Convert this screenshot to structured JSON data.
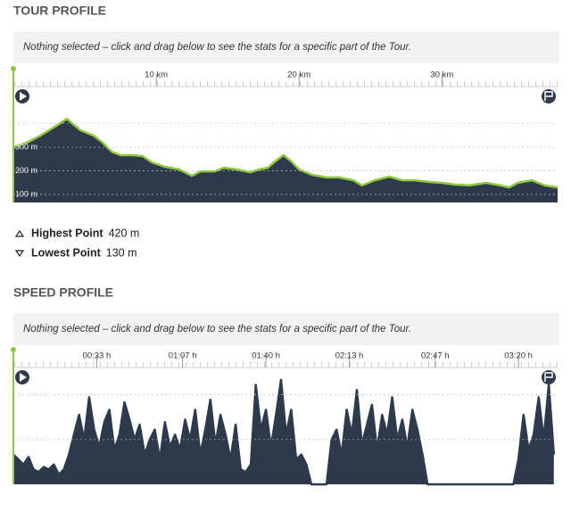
{
  "chart_data": [
    {
      "type": "area",
      "title": "TOUR PROFILE",
      "note": "Nothing selected – click and drag below to see the stats for a specific part of the Tour.",
      "x": [
        0,
        0.94,
        1.88,
        2.81,
        3.75,
        4.69,
        5.63,
        6.25,
        6.88,
        7.5,
        8.44,
        9.06,
        9.69,
        10.6,
        11.6,
        12.5,
        13.1,
        14.1,
        14.7,
        15.6,
        16.6,
        17.2,
        17.8,
        18.4,
        18.9,
        19.4,
        20,
        20.9,
        21.9,
        22.8,
        23.8,
        24.4,
        25.3,
        26.3,
        27.2,
        28.1,
        29.1,
        30,
        30.9,
        31.9,
        33.1,
        34.1,
        34.7,
        35.3,
        36.3,
        37.2,
        38.1
      ],
      "values": [
        300,
        319,
        349,
        383,
        420,
        372,
        349,
        319,
        281,
        266,
        266,
        262,
        236,
        217,
        206,
        179,
        198,
        198,
        213,
        206,
        194,
        206,
        213,
        243,
        266,
        243,
        206,
        183,
        172,
        172,
        160,
        138,
        160,
        175,
        160,
        160,
        153,
        149,
        142,
        138,
        149,
        138,
        130,
        149,
        160,
        138,
        130
      ],
      "xlim": [
        0,
        38.1
      ],
      "xticks": [
        {
          "value": 10,
          "label": "10 km"
        },
        {
          "value": 20,
          "label": "20 km"
        },
        {
          "value": 30,
          "label": "30 km"
        }
      ],
      "ylim": [
        66,
        557
      ],
      "yticks": [
        {
          "value": 100,
          "label": "100 m"
        },
        {
          "value": 200,
          "label": "200 m"
        },
        {
          "value": 300,
          "label": "300 m"
        },
        {
          "value": 400,
          "label": "400 m"
        }
      ],
      "color": "#8dc63f",
      "fill": "#2e3a4b",
      "grid": true,
      "stats": [
        {
          "label": "Highest Point",
          "value": "420 m"
        },
        {
          "label": "Lowest Point",
          "value": "130 m"
        }
      ]
    },
    {
      "type": "area",
      "title": "SPEED PROFILE",
      "note": "Nothing selected – click and drag below to see the stats for a specific part of the Tour.",
      "x": [
        0,
        2,
        4,
        6,
        8,
        10,
        12,
        14,
        16,
        18,
        20,
        22,
        24,
        26,
        28,
        30,
        32,
        34,
        36,
        38,
        40,
        42,
        44,
        46,
        48,
        50,
        52,
        54,
        56,
        58,
        60,
        62,
        64,
        66,
        68,
        70,
        72,
        74,
        76,
        78,
        80,
        82,
        84,
        86,
        88,
        90,
        92,
        94,
        96,
        98,
        100,
        102,
        104,
        106,
        108,
        110,
        112,
        114,
        116,
        118,
        120,
        122,
        124,
        126,
        128,
        130,
        132,
        134,
        136,
        138,
        140,
        142,
        144,
        146,
        148,
        150,
        152,
        154,
        156,
        158,
        160,
        162,
        164,
        166,
        168,
        170,
        172,
        174,
        176,
        178,
        180,
        182,
        184,
        186,
        188,
        190,
        192,
        194,
        196,
        198,
        200,
        202,
        204,
        206,
        208,
        210,
        212,
        214
      ],
      "values": [
        12,
        10,
        8,
        11,
        6,
        5,
        7,
        6,
        8,
        4,
        6,
        12,
        20,
        28,
        18,
        35,
        22,
        15,
        25,
        30,
        14,
        20,
        33,
        26,
        18,
        24,
        12,
        18,
        22,
        10,
        25,
        15,
        20,
        14,
        26,
        18,
        30,
        12,
        22,
        34,
        16,
        28,
        20,
        10,
        24,
        6,
        5,
        8,
        40,
        22,
        30,
        15,
        28,
        42,
        20,
        30,
        10,
        12,
        8,
        0,
        0,
        0,
        0,
        18,
        22,
        12,
        30,
        20,
        38,
        16,
        24,
        32,
        14,
        28,
        20,
        35,
        18,
        26,
        15,
        30,
        22,
        12,
        0,
        0,
        0,
        0,
        0,
        0,
        0,
        0,
        0,
        0,
        0,
        0,
        0,
        0,
        0,
        0,
        0,
        0,
        10,
        28,
        14,
        20,
        35,
        18,
        40,
        12
      ],
      "xlim": [
        0,
        215.5
      ],
      "xticks": [
        {
          "value": 33,
          "label": "00:33 h"
        },
        {
          "value": 67,
          "label": "01:07 h"
        },
        {
          "value": 100,
          "label": "01:40 h"
        },
        {
          "value": 133,
          "label": "02:13 h"
        },
        {
          "value": 167,
          "label": "02:47 h"
        },
        {
          "value": 200,
          "label": "03:20 h"
        }
      ],
      "ylim": [
        0,
        47
      ],
      "yticks": [
        {
          "value": 18,
          "label": "18.0 km/h"
        },
        {
          "value": 36,
          "label": "36.0 km/h"
        }
      ],
      "color": "#2e3a4b",
      "fill": "#2e3a4b",
      "grid": true
    }
  ]
}
